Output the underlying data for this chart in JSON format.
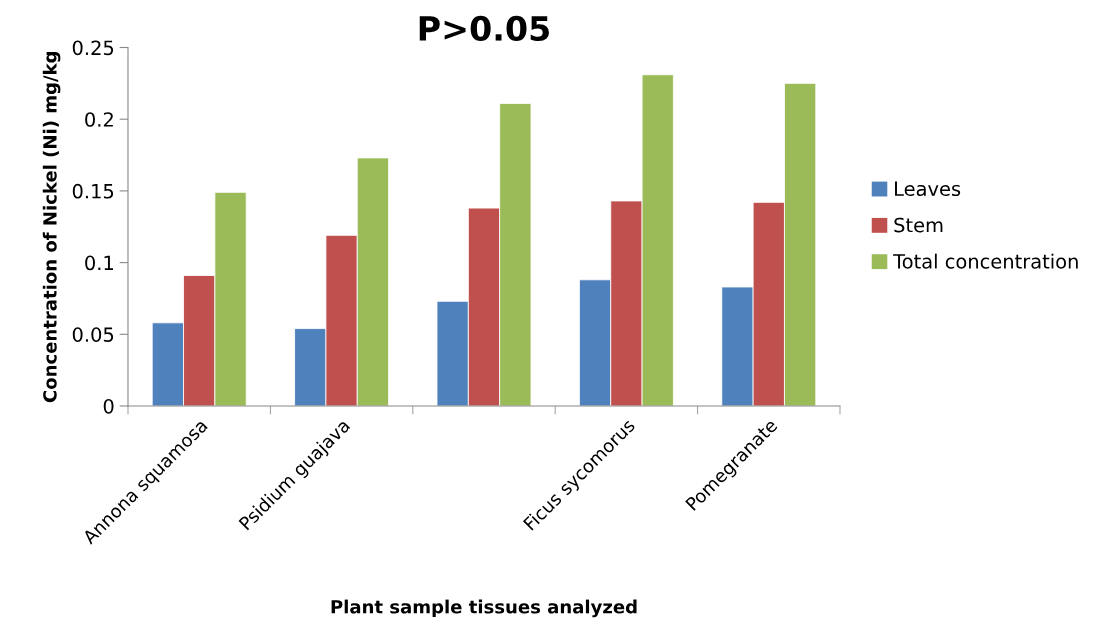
{
  "chart_data": {
    "type": "bar",
    "title": "P>0.05",
    "xlabel": "Plant sample tissues analyzed",
    "ylabel": "Concentration of Nickel (Ni) mg/kg",
    "categories": [
      "Annona squamosa",
      "Psidium guajava",
      null,
      "Ficus sycomorus",
      "Pomegranate"
    ],
    "series": [
      {
        "name": "Leaves",
        "color": "#4f81bd",
        "values": [
          0.058,
          0.054,
          0.073,
          0.088,
          0.083
        ]
      },
      {
        "name": "Stem",
        "color": "#c0504d",
        "values": [
          0.091,
          0.119,
          0.138,
          0.143,
          0.142
        ]
      },
      {
        "name": "Total concentration",
        "color": "#9bbb59",
        "values": [
          0.149,
          0.173,
          0.211,
          0.231,
          0.225
        ]
      }
    ],
    "ylim": [
      0,
      0.25
    ],
    "yticks": [
      0,
      0.05,
      0.1,
      0.15,
      0.2,
      0.25
    ],
    "grid": false,
    "legend": "right"
  }
}
